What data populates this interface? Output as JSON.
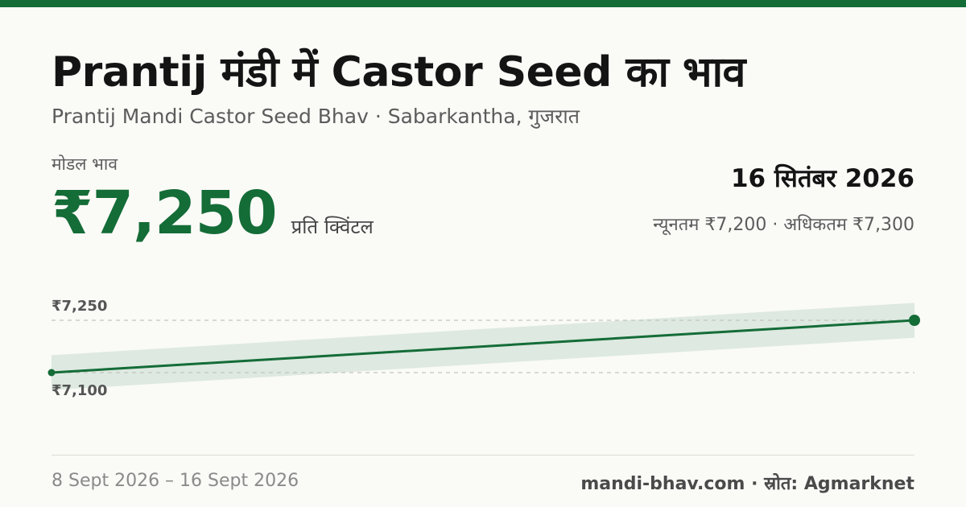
{
  "header": {
    "title": "Prantij मंडी में Castor Seed का भाव",
    "subtitle": "Prantij Mandi Castor Seed Bhav · Sabarkantha, गुजरात"
  },
  "price": {
    "label": "मोडल भाव",
    "value": "₹7,250",
    "unit": "प्रति क्विंटल"
  },
  "date_block": {
    "date": "16 सितंबर 2026",
    "range": "न्यूनतम ₹7,200 · अधिकतम ₹7,300"
  },
  "footer": {
    "date_range": "8 Sept 2026 – 16 Sept 2026",
    "source": "mandi-bhav.com · स्रोत: Agmarknet"
  },
  "colors": {
    "accent": "#146c37",
    "band": "#dde9e1",
    "gridline": "#c4c4bd"
  },
  "chart_data": {
    "type": "line",
    "x": [
      "8 Sept 2026",
      "16 Sept 2026"
    ],
    "series": [
      {
        "values": [
          7100,
          7250
        ]
      }
    ],
    "band": {
      "min": [
        7050,
        7200
      ],
      "max": [
        7150,
        7300
      ]
    },
    "reference_lines": [
      {
        "value": 7250,
        "label": "₹7,250"
      },
      {
        "value": 7100,
        "label": "₹7,100"
      }
    ],
    "ylim": [
      7050,
      7300
    ],
    "grid": false,
    "legend": "none"
  }
}
